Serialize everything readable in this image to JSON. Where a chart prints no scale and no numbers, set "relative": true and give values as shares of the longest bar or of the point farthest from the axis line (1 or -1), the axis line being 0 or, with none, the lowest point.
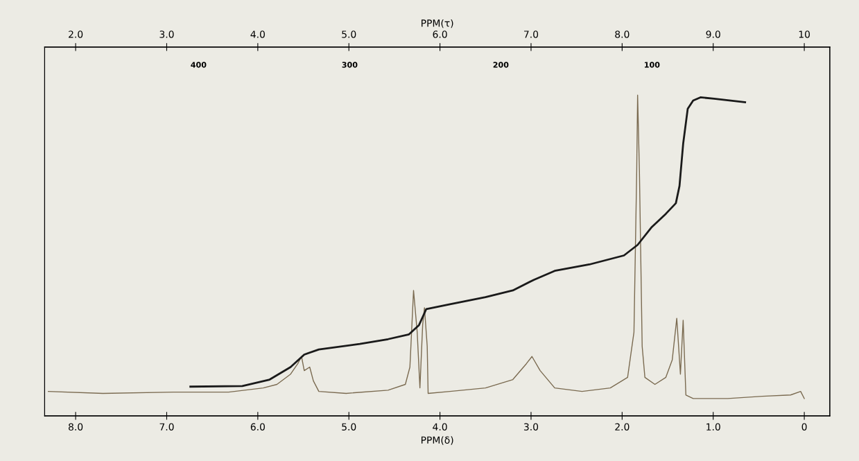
{
  "chart_data": {
    "type": "line",
    "relative": true,
    "xlabel": "PPM(δ)",
    "x2label": "PPM(τ)",
    "xlim": [
      8.34,
      -0.28
    ],
    "xticks": [
      {
        "value": 8,
        "label": "8.0"
      },
      {
        "value": 7,
        "label": "7.0"
      },
      {
        "value": 6,
        "label": "6.0"
      },
      {
        "value": 5,
        "label": "5.0"
      },
      {
        "value": 4,
        "label": "4.0"
      },
      {
        "value": 3,
        "label": "3.0"
      },
      {
        "value": 2,
        "label": "2.0"
      },
      {
        "value": 1,
        "label": "1.0"
      },
      0
    ],
    "x2lim": [
      1.66,
      10.28
    ],
    "x2ticks": [
      {
        "value": 2,
        "label": "2.0"
      },
      {
        "value": 3,
        "label": "3.0"
      },
      {
        "value": 4,
        "label": "4.0"
      },
      {
        "value": 5,
        "label": "5.0"
      },
      {
        "value": 6,
        "label": "6.0"
      },
      {
        "value": 7,
        "label": "7.0"
      },
      {
        "value": 8,
        "label": "8.0"
      },
      {
        "value": 9,
        "label": "9.0"
      },
      10
    ],
    "annotations": [
      "400",
      "300",
      "200",
      "100"
    ],
    "grid": false,
    "legend": false,
    "marker": "none",
    "line_style": "solid",
    "series": [
      {
        "color": "#7a6a50",
        "x": [
          8.3,
          7.7,
          6.93,
          6.32,
          5.94,
          5.79,
          5.64,
          5.56,
          5.52,
          5.49,
          5.43,
          5.39,
          5.33,
          5.03,
          4.57,
          4.38,
          4.33,
          4.29,
          4.25,
          4.22,
          4.19,
          4.17,
          4.14,
          4.13,
          3.89,
          3.5,
          3.2,
          3.05,
          2.99,
          2.9,
          2.74,
          2.44,
          2.13,
          1.94,
          1.87,
          1.84,
          1.83,
          1.81,
          1.78,
          1.75,
          1.64,
          1.52,
          1.45,
          1.4,
          1.36,
          1.33,
          1.3,
          1.22,
          0.84,
          0.46,
          0.15,
          0.04,
          0
        ],
        "values": [
          0.076,
          0.07,
          0.074,
          0.074,
          0.087,
          0.098,
          0.13,
          0.163,
          0.185,
          0.141,
          0.152,
          0.109,
          0.076,
          0.07,
          0.08,
          0.098,
          0.152,
          0.391,
          0.261,
          0.087,
          0.283,
          0.337,
          0.217,
          0.07,
          0.076,
          0.087,
          0.113,
          0.163,
          0.185,
          0.141,
          0.087,
          0.076,
          0.087,
          0.12,
          0.261,
          0.761,
          1,
          0.761,
          0.217,
          0.12,
          0.098,
          0.12,
          0.174,
          0.304,
          0.13,
          0.298,
          0.065,
          0.054,
          0.054,
          0.061,
          0.065,
          0.076,
          0.054
        ]
      },
      {
        "color": "#1a1a1a",
        "x": [
          6.74,
          6.17,
          5.87,
          5.64,
          5.49,
          5.33,
          4.88,
          4.57,
          4.34,
          4.23,
          4.15,
          3.89,
          3.5,
          3.2,
          2.97,
          2.74,
          2.36,
          1.98,
          1.83,
          1.68,
          1.52,
          1.41,
          1.37,
          1.33,
          1.28,
          1.22,
          1.14,
          0.99,
          0.65
        ],
        "values": [
          0.091,
          0.093,
          0.113,
          0.152,
          0.191,
          0.207,
          0.224,
          0.239,
          0.254,
          0.283,
          0.333,
          0.348,
          0.37,
          0.391,
          0.424,
          0.452,
          0.472,
          0.5,
          0.533,
          0.587,
          0.63,
          0.663,
          0.717,
          0.848,
          0.957,
          0.983,
          0.993,
          0.989,
          0.978
        ]
      }
    ]
  }
}
